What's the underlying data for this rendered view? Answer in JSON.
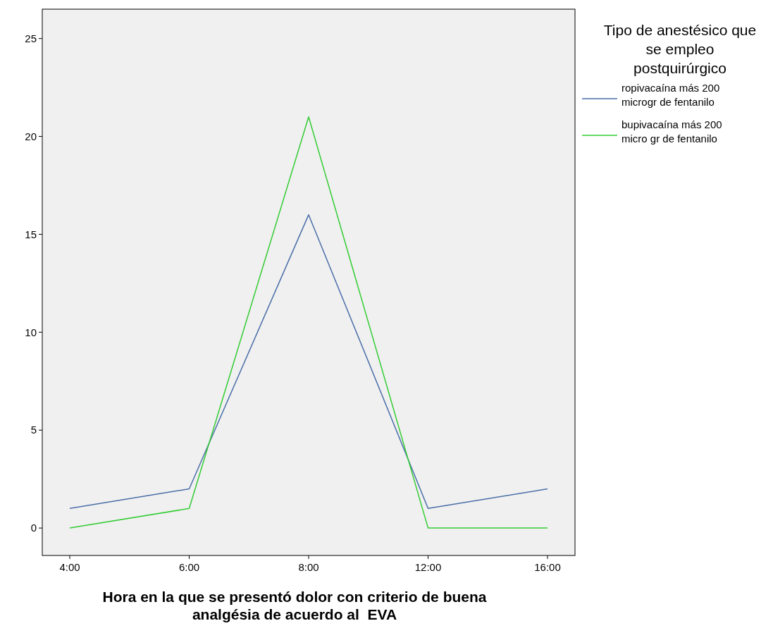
{
  "chart_data": {
    "type": "line",
    "xlabel": "Hora en la que se presentó dolor con criterio de buena analgésia de acuerdo al  EVA",
    "legend_title": "Tipo de anestésico que se empleo postquirúrgico",
    "categories": [
      "4:00",
      "6:00",
      "8:00",
      "12:00",
      "16:00"
    ],
    "series": [
      {
        "name": "ropivacaína más 200 microgr de fentanilo",
        "color": "#4a6ea8",
        "values": [
          1,
          2,
          16,
          1,
          2
        ]
      },
      {
        "name": "bupivacaína más 200 micro gr de fentanilo",
        "color": "#33cc33",
        "values": [
          0,
          1,
          21,
          0,
          0
        ]
      }
    ],
    "ylim": [
      -1.4,
      26.5
    ],
    "yticks": [
      0,
      5,
      10,
      15,
      20,
      25
    ],
    "grid": false,
    "legend": "right",
    "marker": "none",
    "line_style": "solid"
  }
}
